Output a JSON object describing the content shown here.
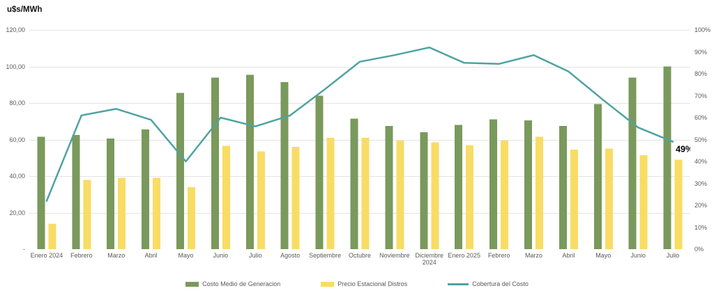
{
  "title": "u$s/MWh",
  "annotation": "49%",
  "colors": {
    "green": "#7A995C",
    "yellow": "#F9DC64",
    "teal": "#4EA3A1",
    "gridline": "#E3E3E3",
    "baseline": "#D9D9D9",
    "axis_text": "#595959",
    "annotation_text": "#000000"
  },
  "left_axis": {
    "ticks": [
      "120,00",
      "100,00",
      "80,00",
      "60,00",
      "40,00",
      "20,00",
      "-"
    ],
    "min": 0,
    "max": 120
  },
  "right_axis": {
    "ticks": [
      "100%",
      "90%",
      "80%",
      "70%",
      "60%",
      "50%",
      "40%",
      "30%",
      "20%",
      "10%",
      "0%"
    ],
    "min": 0,
    "max": 100
  },
  "legend": [
    {
      "label": "Costo Medio de Generacion",
      "type": "bar",
      "color_key": "green"
    },
    {
      "label": "Precio Estacional Distros",
      "type": "bar",
      "color_key": "yellow"
    },
    {
      "label": "Cobertura del Costo",
      "type": "line",
      "color_key": "teal"
    }
  ],
  "chart_data": {
    "type": "bar",
    "subtype": "grouped-bars-with-line",
    "title": "u$s/MWh",
    "xlabel": "",
    "ylabel_left": "u$s/MWh",
    "ylabel_right": "%",
    "left_ylim": [
      0,
      120
    ],
    "right_ylim": [
      0,
      100
    ],
    "grid": "horizontal",
    "legend_position": "bottom",
    "categories": [
      "Enero 2024",
      "Febrero",
      "Marzo",
      "Abril",
      "Mayo",
      "Junio",
      "Julio",
      "Agosto",
      "Septiembre",
      "Octubre",
      "Noviembre",
      "Diciembre\n2024",
      "Enero 2025",
      "Febrero",
      "Marzo",
      "Abril",
      "Mayo",
      "Junio",
      "Julio"
    ],
    "series": [
      {
        "name": "Costo Medio de Generacion",
        "type": "bar",
        "axis": "left",
        "color_key": "green",
        "values": [
          61.5,
          62.5,
          60.5,
          65.5,
          85.5,
          94,
          95.5,
          91.5,
          84,
          71.5,
          67.5,
          64,
          68,
          71,
          70.5,
          67.5,
          79.5,
          94,
          100
        ]
      },
      {
        "name": "Precio Estacional Distros",
        "type": "bar",
        "axis": "left",
        "color_key": "yellow",
        "values": [
          14,
          38,
          39,
          39,
          34,
          56.5,
          53.5,
          56,
          61,
          61,
          59.5,
          58.5,
          57,
          59.5,
          61.5,
          54.5,
          55,
          51.5,
          49
        ]
      },
      {
        "name": "Cobertura del Costo",
        "type": "line",
        "axis": "right",
        "color_key": "teal",
        "values": [
          22,
          61,
          64,
          59,
          40,
          60,
          56,
          61,
          73,
          85.5,
          88.5,
          92,
          85,
          84.5,
          88.5,
          81,
          68,
          55.5,
          49
        ]
      }
    ],
    "annotation": {
      "text": "49%",
      "series": "Cobertura del Costo",
      "category_index": 18
    }
  }
}
